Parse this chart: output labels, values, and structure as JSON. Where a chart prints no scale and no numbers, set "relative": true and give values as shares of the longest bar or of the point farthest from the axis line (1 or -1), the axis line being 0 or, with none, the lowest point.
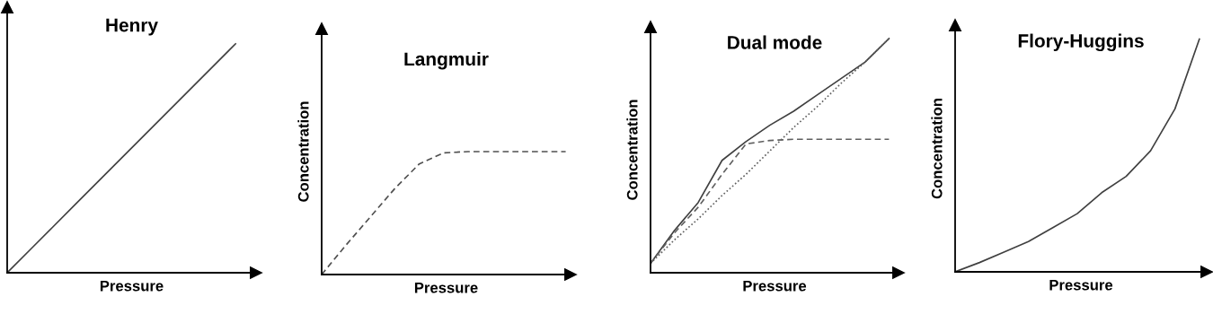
{
  "chart_data": [
    {
      "type": "line",
      "title": "Henry",
      "xlabel": "Pressure",
      "relative": true,
      "categories": [
        null,
        null,
        null,
        null,
        null,
        null,
        null,
        null,
        null,
        null,
        null
      ],
      "series": [
        {
          "color": "#404040",
          "line_style": "solid",
          "values": [
            0,
            0.1,
            0.2,
            0.3,
            0.4,
            0.5,
            0.6,
            0.7,
            0.8,
            0.9,
            1
          ]
        }
      ]
    },
    {
      "type": "line",
      "title": "Langmuir",
      "xlabel": "Pressure",
      "ylabel": "Concentration",
      "relative": true,
      "categories": [
        null,
        null,
        null,
        null,
        null,
        null,
        null,
        null,
        null,
        null,
        null
      ],
      "series": [
        {
          "color": "#505050",
          "line_style": "dashed",
          "values": [
            0,
            0.24,
            0.47,
            0.7,
            0.9,
            0.99,
            1,
            1,
            1,
            1,
            1
          ]
        }
      ]
    },
    {
      "type": "line",
      "title": "Dual mode",
      "xlabel": "Pressure",
      "ylabel": "Concentration",
      "relative": true,
      "categories": [
        null,
        null,
        null,
        null,
        null,
        null,
        null,
        null,
        null,
        null,
        null
      ],
      "series": [
        {
          "color": "#404040",
          "line_style": "solid",
          "values": [
            0.04,
            0.18,
            0.3,
            0.48,
            0.56,
            0.63,
            0.69,
            0.76,
            0.83,
            0.9,
            1
          ]
        },
        {
          "color": "#606060",
          "line_style": "dashed",
          "values": [
            0.04,
            0.17,
            0.28,
            0.42,
            0.55,
            0.565,
            0.57,
            0.57,
            0.57,
            0.57,
            0.57
          ]
        },
        {
          "color": "#606060",
          "line_style": "dotted",
          "values": [
            0.04,
            0.14,
            0.23,
            0.33,
            0.42,
            0.52,
            0.62,
            0.71,
            0.81,
            0.9,
            1
          ]
        }
      ]
    },
    {
      "type": "line",
      "title": "Flory-Huggins",
      "xlabel": "Pressure",
      "ylabel": "Concentration",
      "relative": true,
      "categories": [
        null,
        null,
        null,
        null,
        null,
        null,
        null,
        null,
        null,
        null,
        null
      ],
      "series": [
        {
          "color": "#404040",
          "line_style": "solid",
          "values": [
            0,
            0.04,
            0.085,
            0.13,
            0.19,
            0.25,
            0.34,
            0.41,
            0.52,
            0.7,
            1
          ]
        }
      ]
    }
  ]
}
